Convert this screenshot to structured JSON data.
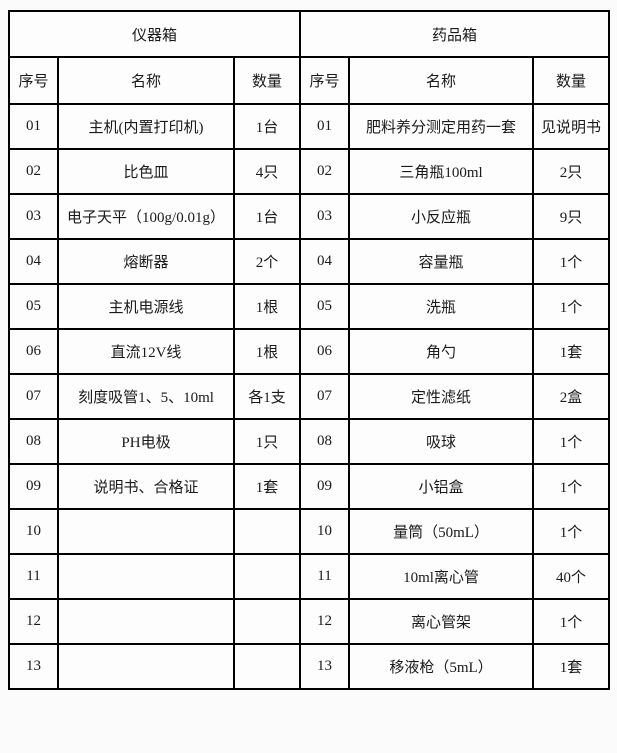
{
  "table": {
    "left": {
      "title": "仪器箱",
      "headers": [
        "序号",
        "名称",
        "数量"
      ],
      "rows": [
        {
          "no": "01",
          "name": "主机(内置打印机)",
          "qty": "1台"
        },
        {
          "no": "02",
          "name": "比色皿",
          "qty": "4只"
        },
        {
          "no": "03",
          "name": "电子天平（100g/0.01g）",
          "qty": "1台"
        },
        {
          "no": "04",
          "name": "熔断器",
          "qty": "2个"
        },
        {
          "no": "05",
          "name": "主机电源线",
          "qty": "1根"
        },
        {
          "no": "06",
          "name": "直流12V线",
          "qty": "1根"
        },
        {
          "no": "07",
          "name": "刻度吸管1、5、10ml",
          "qty": "各1支"
        },
        {
          "no": "08",
          "name": "PH电极",
          "qty": "1只"
        },
        {
          "no": "09",
          "name": "说明书、合格证",
          "qty": "1套"
        },
        {
          "no": "10",
          "name": "",
          "qty": ""
        },
        {
          "no": "11",
          "name": "",
          "qty": ""
        },
        {
          "no": "12",
          "name": "",
          "qty": ""
        },
        {
          "no": "13",
          "name": "",
          "qty": ""
        }
      ]
    },
    "right": {
      "title": "药品箱",
      "headers": [
        "序号",
        "名称",
        "数量"
      ],
      "rows": [
        {
          "no": "01",
          "name": "肥料养分测定用药一套",
          "qty": "见说明书"
        },
        {
          "no": "02",
          "name": "三角瓶100ml",
          "qty": "2只"
        },
        {
          "no": "03",
          "name": "小反应瓶",
          "qty": "9只"
        },
        {
          "no": "04",
          "name": "容量瓶",
          "qty": "1个"
        },
        {
          "no": "05",
          "name": "洗瓶",
          "qty": "1个"
        },
        {
          "no": "06",
          "name": "角勺",
          "qty": "1套"
        },
        {
          "no": "07",
          "name": "定性滤纸",
          "qty": "2盒"
        },
        {
          "no": "08",
          "name": "吸球",
          "qty": "1个"
        },
        {
          "no": "09",
          "name": "小铝盒",
          "qty": "1个"
        },
        {
          "no": "10",
          "name": "量筒（50mL）",
          "qty": "1个"
        },
        {
          "no": "11",
          "name": "10ml离心管",
          "qty": "40个"
        },
        {
          "no": "12",
          "name": "离心管架",
          "qty": "1个"
        },
        {
          "no": "13",
          "name": "移液枪（5mL）",
          "qty": "1套"
        }
      ]
    }
  }
}
